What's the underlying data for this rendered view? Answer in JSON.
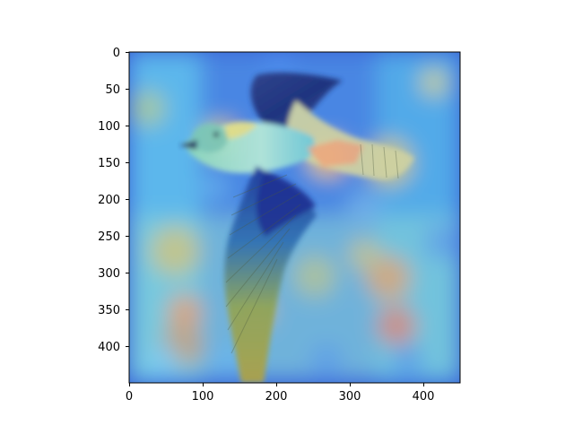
{
  "figure": {
    "xticks": [
      "0",
      "100",
      "200",
      "300",
      "400"
    ],
    "yticks": [
      "0",
      "50",
      "100",
      "150",
      "200",
      "250",
      "300",
      "350",
      "400"
    ]
  },
  "overlay": {
    "colormap": "jet",
    "image_subject": "bird-in-flight",
    "frame_color": "#000000",
    "background_color": "#ffffff"
  }
}
